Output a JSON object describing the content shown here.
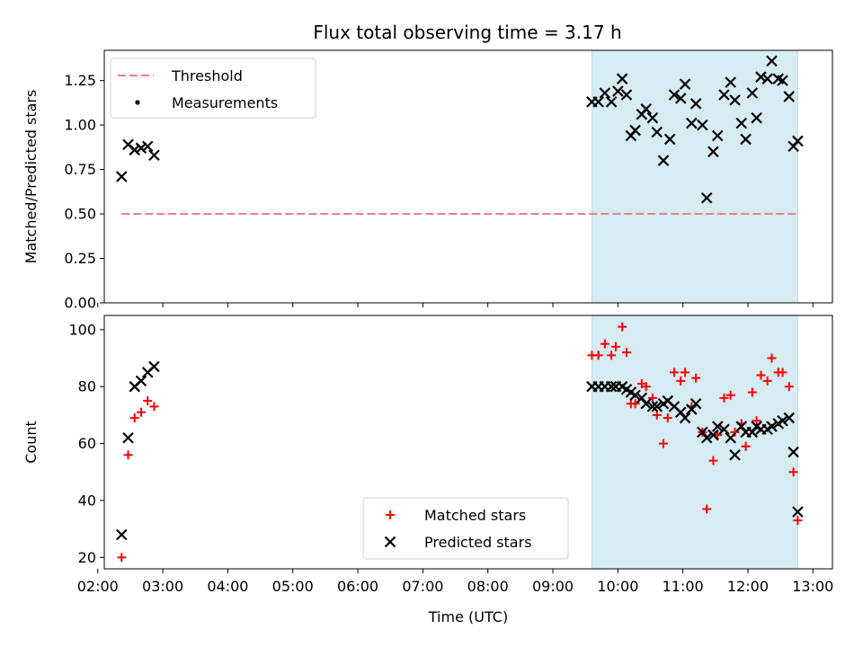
{
  "chart_data": [
    {
      "type": "scatter",
      "title": "Flux total observing time = 3.17 h",
      "xlabel": "",
      "ylabel": "Matched/Predicted stars",
      "xlim": [
        "02:06",
        "13:18"
      ],
      "ylim": [
        0,
        1.42
      ],
      "yticks": [
        "0.00",
        "0.25",
        "0.50",
        "0.75",
        "1.00",
        "1.25"
      ],
      "shaded_region": {
        "x0": "09:36",
        "x1": "12:46",
        "color": "#add8e6"
      },
      "legend_position": "upper-left",
      "legend": [
        {
          "name": "Threshold",
          "marker": "dashed-line",
          "color": "#f08080"
        },
        {
          "name": "Measurements",
          "marker": "dot",
          "color": "#000000"
        }
      ],
      "threshold": {
        "name": "Threshold",
        "y": 0.5,
        "x_start": "02:22",
        "x_end": "12:46"
      },
      "series": [
        {
          "name": "Measurements",
          "points": [
            [
              "02:22",
              0.71
            ],
            [
              "02:28",
              0.89
            ],
            [
              "02:34",
              0.86
            ],
            [
              "02:40",
              0.87
            ],
            [
              "02:46",
              0.88
            ],
            [
              "02:52",
              0.83
            ],
            [
              "09:36",
              1.13
            ],
            [
              "09:42",
              1.13
            ],
            [
              "09:48",
              1.18
            ],
            [
              "09:54",
              1.13
            ],
            [
              "10:00",
              1.19
            ],
            [
              "10:04",
              1.26
            ],
            [
              "10:08",
              1.17
            ],
            [
              "10:12",
              0.94
            ],
            [
              "10:16",
              0.97
            ],
            [
              "10:22",
              1.06
            ],
            [
              "10:26",
              1.09
            ],
            [
              "10:32",
              1.04
            ],
            [
              "10:36",
              0.96
            ],
            [
              "10:42",
              0.8
            ],
            [
              "10:48",
              0.92
            ],
            [
              "10:52",
              1.17
            ],
            [
              "10:58",
              1.15
            ],
            [
              "11:02",
              1.23
            ],
            [
              "11:08",
              1.01
            ],
            [
              "11:12",
              1.12
            ],
            [
              "11:18",
              1.0
            ],
            [
              "11:22",
              0.59
            ],
            [
              "11:28",
              0.85
            ],
            [
              "11:32",
              0.94
            ],
            [
              "11:38",
              1.17
            ],
            [
              "11:44",
              1.24
            ],
            [
              "11:48",
              1.14
            ],
            [
              "11:54",
              1.01
            ],
            [
              "11:58",
              0.92
            ],
            [
              "12:04",
              1.18
            ],
            [
              "12:08",
              1.04
            ],
            [
              "12:12",
              1.27
            ],
            [
              "12:18",
              1.26
            ],
            [
              "12:22",
              1.36
            ],
            [
              "12:28",
              1.26
            ],
            [
              "12:32",
              1.25
            ],
            [
              "12:38",
              1.16
            ],
            [
              "12:42",
              0.88
            ],
            [
              "12:46",
              0.91
            ]
          ]
        }
      ]
    },
    {
      "type": "scatter",
      "title": "",
      "xlabel": "Time (UTC)",
      "ylabel": "Count",
      "xlim": [
        "02:06",
        "13:18"
      ],
      "ylim": [
        16,
        105
      ],
      "xticks": [
        "02:00",
        "03:00",
        "04:00",
        "05:00",
        "06:00",
        "07:00",
        "08:00",
        "09:00",
        "10:00",
        "11:00",
        "12:00",
        "13:00"
      ],
      "yticks": [
        "20",
        "40",
        "60",
        "80",
        "100"
      ],
      "shaded_region": {
        "x0": "09:36",
        "x1": "12:46",
        "color": "#add8e6"
      },
      "legend_position": "lower-center",
      "legend": [
        {
          "name": "Matched stars",
          "marker": "plus",
          "color": "#ff0000"
        },
        {
          "name": "Predicted stars",
          "marker": "x",
          "color": "#000000"
        }
      ],
      "series": [
        {
          "name": "Matched stars",
          "points": [
            [
              "02:22",
              20
            ],
            [
              "02:28",
              56
            ],
            [
              "02:34",
              69
            ],
            [
              "02:40",
              71
            ],
            [
              "02:46",
              75
            ],
            [
              "02:52",
              73
            ],
            [
              "09:36",
              91
            ],
            [
              "09:42",
              91
            ],
            [
              "09:48",
              95
            ],
            [
              "09:54",
              91
            ],
            [
              "09:58",
              94
            ],
            [
              "10:04",
              101
            ],
            [
              "10:08",
              92
            ],
            [
              "10:12",
              74
            ],
            [
              "10:16",
              74
            ],
            [
              "10:22",
              81
            ],
            [
              "10:26",
              80
            ],
            [
              "10:32",
              76
            ],
            [
              "10:36",
              70
            ],
            [
              "10:42",
              60
            ],
            [
              "10:46",
              69
            ],
            [
              "10:52",
              85
            ],
            [
              "10:58",
              82
            ],
            [
              "11:02",
              85
            ],
            [
              "11:08",
              73
            ],
            [
              "11:12",
              83
            ],
            [
              "11:18",
              64
            ],
            [
              "11:22",
              37
            ],
            [
              "11:28",
              54
            ],
            [
              "11:32",
              63
            ],
            [
              "11:38",
              76
            ],
            [
              "11:44",
              77
            ],
            [
              "11:48",
              64
            ],
            [
              "11:54",
              67
            ],
            [
              "11:58",
              59
            ],
            [
              "12:04",
              78
            ],
            [
              "12:08",
              68
            ],
            [
              "12:12",
              84
            ],
            [
              "12:18",
              82
            ],
            [
              "12:22",
              90
            ],
            [
              "12:28",
              85
            ],
            [
              "12:32",
              85
            ],
            [
              "12:38",
              80
            ],
            [
              "12:42",
              50
            ],
            [
              "12:46",
              33
            ]
          ]
        },
        {
          "name": "Predicted stars",
          "points": [
            [
              "02:22",
              28
            ],
            [
              "02:28",
              62
            ],
            [
              "02:34",
              80
            ],
            [
              "02:40",
              82
            ],
            [
              "02:46",
              85
            ],
            [
              "02:52",
              87
            ],
            [
              "09:36",
              80
            ],
            [
              "09:42",
              80
            ],
            [
              "09:48",
              80
            ],
            [
              "09:54",
              80
            ],
            [
              "09:58",
              80
            ],
            [
              "10:04",
              80
            ],
            [
              "10:08",
              79
            ],
            [
              "10:12",
              78
            ],
            [
              "10:16",
              77
            ],
            [
              "10:22",
              76
            ],
            [
              "10:26",
              74
            ],
            [
              "10:32",
              73
            ],
            [
              "10:36",
              73
            ],
            [
              "10:42",
              74
            ],
            [
              "10:46",
              75
            ],
            [
              "10:52",
              73
            ],
            [
              "10:58",
              71
            ],
            [
              "11:02",
              69
            ],
            [
              "11:08",
              72
            ],
            [
              "11:12",
              74
            ],
            [
              "11:18",
              64
            ],
            [
              "11:22",
              62
            ],
            [
              "11:28",
              63
            ],
            [
              "11:32",
              66
            ],
            [
              "11:38",
              65
            ],
            [
              "11:44",
              62
            ],
            [
              "11:48",
              56
            ],
            [
              "11:54",
              66
            ],
            [
              "11:58",
              64
            ],
            [
              "12:04",
              64
            ],
            [
              "12:08",
              66
            ],
            [
              "12:12",
              65
            ],
            [
              "12:18",
              65
            ],
            [
              "12:22",
              66
            ],
            [
              "12:28",
              67
            ],
            [
              "12:32",
              68
            ],
            [
              "12:38",
              69
            ],
            [
              "12:42",
              57
            ],
            [
              "12:46",
              36
            ]
          ]
        }
      ]
    }
  ]
}
